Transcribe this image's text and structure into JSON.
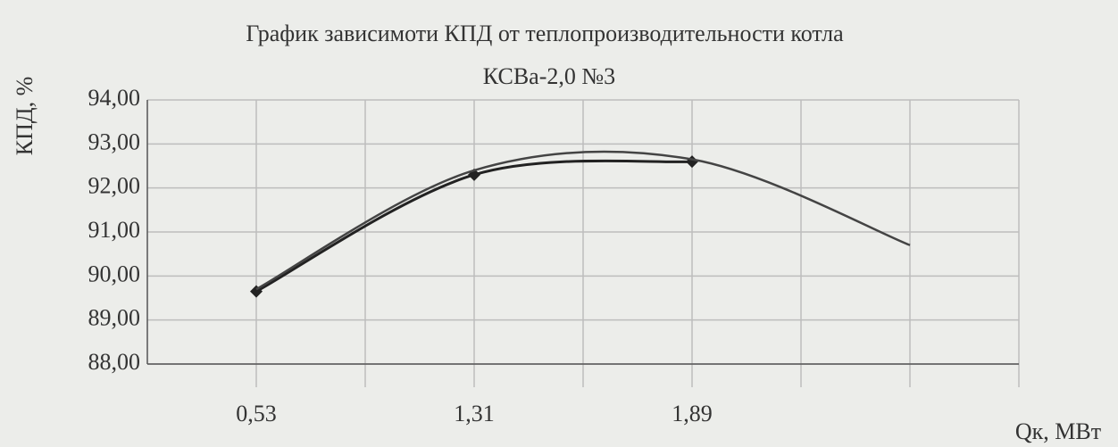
{
  "chart_data": {
    "type": "line",
    "title": [
      "График зависимоти КПД от теплопроизводительности котла",
      "КСВа-2,0 №3"
    ],
    "y_label": "КПД, %",
    "x_label": "Qк, МВт",
    "categories": [
      "0,53",
      "1,31",
      "1,89",
      null
    ],
    "series": [
      {
        "color": "#222222",
        "values": [
          89.65,
          92.3,
          92.6,
          null
        ],
        "markers": true
      },
      {
        "color": "#444444",
        "values": [
          89.7,
          92.4,
          92.65,
          90.7
        ],
        "markers": false
      }
    ],
    "ylim": [
      88,
      94
    ],
    "yticks": [
      {
        "value": 88,
        "label": "88,00"
      },
      {
        "value": 89,
        "label": "89,00"
      },
      {
        "value": 90,
        "label": "90,00"
      },
      {
        "value": 91,
        "label": "91,00"
      },
      {
        "value": 92,
        "label": "92,00"
      },
      {
        "value": 93,
        "label": "93,00"
      },
      {
        "value": 94,
        "label": "94,00"
      }
    ],
    "grid": true
  }
}
